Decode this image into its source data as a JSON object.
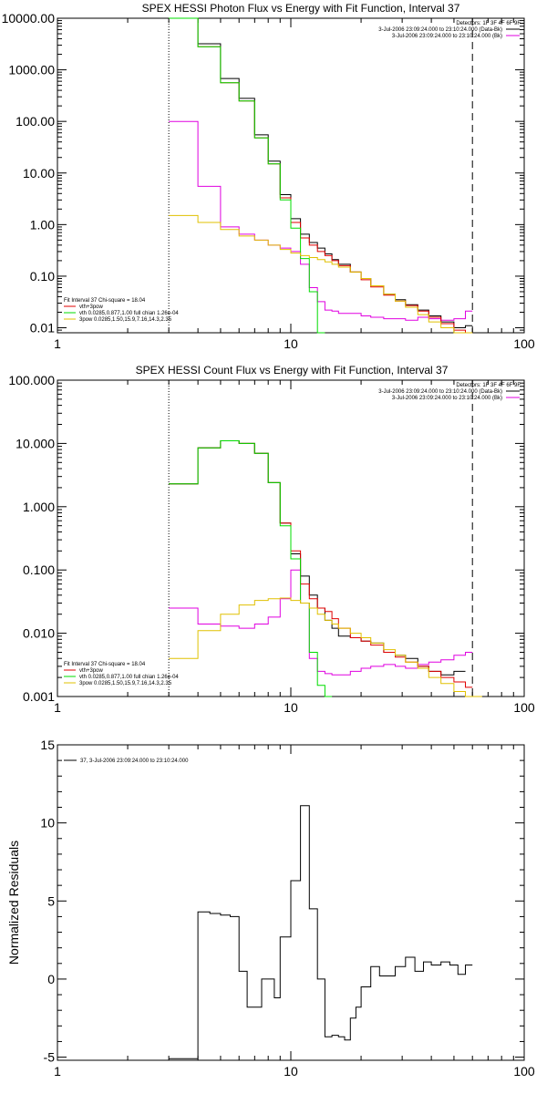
{
  "chart_data": [
    {
      "type": "line",
      "title": "SPEX HESSI Photon Flux vs Energy with Fit Function, Interval 37",
      "xscale": "log",
      "yscale": "log",
      "xlim": [
        1,
        100
      ],
      "ylim": [
        0.008,
        10000
      ],
      "xticks": [
        1,
        10,
        100
      ],
      "xtick_labels": [
        "1",
        "10",
        "100"
      ],
      "yticks": [
        0.01,
        0.1,
        1,
        10,
        100,
        1000,
        10000
      ],
      "ytick_labels": [
        "0.01",
        "0.10",
        "1.00",
        "10.00",
        "100.00",
        "1000.00",
        "10000.00"
      ],
      "vlines": [
        {
          "x": 3,
          "style": "dotted"
        },
        {
          "x": 60,
          "style": "dashed"
        }
      ],
      "legend_top": [
        "Detectors: 1F 3F 4F 6F 9F",
        "3-Jul-2006 23:09:24.000 to 23:10:24.000 (Data-Bk)",
        "3-Jul-2006 23:09:24.000 to 23:10:24.000 (Bk)"
      ],
      "legend_top_colors": [
        "",
        "#000000",
        "#e000e0"
      ],
      "legend_bottom": [
        "Fit Interval 37   Chi-square = 18.04",
        "vth+3pow",
        "vth 0.0285,0.877,1.00  full chian 1.26e-04",
        "3pow 0.0285,1.50,15.9,7.16,14.3,2.35"
      ],
      "legend_bottom_colors": [
        "",
        "#e00000",
        "#00dd00",
        "#e0c000"
      ],
      "edges": [
        3,
        4,
        5,
        6,
        7,
        8,
        9,
        10,
        11,
        12,
        13,
        14,
        15,
        16,
        18,
        20,
        22,
        25,
        28,
        31,
        35,
        39,
        44,
        50,
        56,
        60
      ],
      "series": [
        {
          "name": "Data-Bk",
          "color": "#000000",
          "values": [
            10000,
            3200,
            680,
            280,
            55,
            17,
            3.8,
            1.3,
            0.65,
            0.45,
            0.35,
            0.27,
            0.21,
            0.17,
            0.12,
            0.09,
            0.065,
            0.045,
            0.035,
            0.028,
            0.022,
            0.017,
            0.013,
            0.01,
            0.011
          ]
        },
        {
          "name": "Bk",
          "color": "#e000e0",
          "values": [
            100,
            5.5,
            0.9,
            0.65,
            0.5,
            0.4,
            0.35,
            0.3,
            0.17,
            0.06,
            0.032,
            0.022,
            0.021,
            0.019,
            0.019,
            0.017,
            0.016,
            0.015,
            0.015,
            0.014,
            0.016,
            0.015,
            0.014,
            0.015,
            0.021
          ]
        },
        {
          "name": "vth+3pow",
          "color": "#e00000",
          "values": [
            10000,
            2800,
            560,
            250,
            48,
            15,
            3.3,
            1.1,
            0.55,
            0.4,
            0.3,
            0.25,
            0.2,
            0.16,
            0.12,
            0.085,
            0.062,
            0.043,
            0.033,
            0.027,
            0.021,
            0.016,
            0.012,
            0.009,
            0.008
          ]
        },
        {
          "name": "vth",
          "color": "#00dd00",
          "values": [
            10000,
            2800,
            560,
            250,
            48,
            15,
            3.0,
            0.85,
            0.22,
            0.05,
            0.008
          ]
        },
        {
          "name": "3pow",
          "color": "#e0c000",
          "values": [
            1.5,
            1.1,
            0.8,
            0.6,
            0.5,
            0.4,
            0.33,
            0.28,
            0.25,
            0.23,
            0.21,
            0.19,
            0.17,
            0.15,
            0.12,
            0.09,
            0.065,
            0.045,
            0.033,
            0.025,
            0.018,
            0.013,
            0.01,
            0.008,
            0.007
          ]
        }
      ]
    },
    {
      "type": "line",
      "title": "SPEX HESSI Count Flux vs Energy with Fit Function, Interval 37",
      "xscale": "log",
      "yscale": "log",
      "xlim": [
        1,
        100
      ],
      "ylim": [
        0.001,
        100
      ],
      "xticks": [
        1,
        10,
        100
      ],
      "xtick_labels": [
        "1",
        "10",
        "100"
      ],
      "yticks": [
        0.001,
        0.01,
        0.1,
        1,
        10,
        100
      ],
      "ytick_labels": [
        "0.001",
        "0.010",
        "0.100",
        "1.000",
        "10.000",
        "100.000"
      ],
      "vlines": [
        {
          "x": 3,
          "style": "dotted"
        },
        {
          "x": 60,
          "style": "dashed"
        }
      ],
      "legend_top": [
        "Detectors: 1F 3F 4F 6F 9F",
        "3-Jul-2006 23:09:24.000 to 23:10:24.000 (Data-Bk)",
        "3-Jul-2006 23:09:24.000 to 23:10:24.000 (Bk)"
      ],
      "legend_top_colors": [
        "",
        "#000000",
        "#e000e0"
      ],
      "legend_bottom": [
        "Fit Interval 37   Chi-square = 18.04",
        "vth+3pow",
        "vth 0.0285,0.877,1.00  full chian 1.26e-04",
        "3pow 0.0285,1.50,15.9,7.16,14.3,2.35"
      ],
      "legend_bottom_colors": [
        "",
        "#e00000",
        "#00dd00",
        "#e0c000"
      ],
      "edges": [
        3,
        4,
        5,
        6,
        7,
        8,
        9,
        10,
        11,
        12,
        13,
        14,
        15,
        16,
        18,
        20,
        22,
        25,
        28,
        31,
        35,
        39,
        44,
        50,
        56,
        60,
        66
      ],
      "series": [
        {
          "name": "Data-Bk",
          "color": "#000000",
          "values": [
            2.3,
            8.5,
            11,
            10,
            7,
            2.4,
            0.55,
            0.18,
            0.08,
            0.04,
            0.025,
            0.016,
            0.012,
            0.009,
            0.0085,
            0.0075,
            0.007,
            0.005,
            0.0045,
            0.004,
            0.003,
            0.0025,
            0.0022,
            0.0025
          ]
        },
        {
          "name": "Bk",
          "color": "#e000e0",
          "values": [
            0.025,
            0.014,
            0.013,
            0.012,
            0.014,
            0.018,
            0.035,
            0.1,
            0.03,
            0.004,
            0.0025,
            0.0023,
            0.0022,
            0.0022,
            0.0025,
            0.0028,
            0.003,
            0.0032,
            0.003,
            0.0028,
            0.0032,
            0.0035,
            0.0038,
            0.0045,
            0.005
          ]
        },
        {
          "name": "vth+3pow",
          "color": "#e00000",
          "values": [
            2.3,
            8.5,
            11,
            10,
            7,
            2.4,
            0.55,
            0.2,
            0.06,
            0.035,
            0.025,
            0.022,
            0.017,
            0.012,
            0.0085,
            0.0075,
            0.0065,
            0.005,
            0.0042,
            0.0035,
            0.003,
            0.0025,
            0.002,
            0.0017,
            0.0014
          ]
        },
        {
          "name": "vth",
          "color": "#00dd00",
          "values": [
            2.3,
            8.5,
            11,
            10,
            7,
            2.4,
            0.5,
            0.15,
            0.03,
            0.005,
            0.0015,
            0.001
          ]
        },
        {
          "name": "3pow",
          "color": "#e0c000",
          "values": [
            0.004,
            0.011,
            0.02,
            0.028,
            0.033,
            0.035,
            0.036,
            0.033,
            0.03,
            0.025,
            0.02,
            0.016,
            0.014,
            0.012,
            0.01,
            0.0085,
            0.007,
            0.0055,
            0.0045,
            0.0035,
            0.0028,
            0.002,
            0.0016,
            0.0012,
            0.001,
            0.0009
          ]
        }
      ]
    },
    {
      "type": "line",
      "title": "",
      "ylabel": "Normalized Residuals",
      "xscale": "log",
      "yscale": "linear",
      "xlim": [
        1,
        100
      ],
      "ylim": [
        -5.2,
        15
      ],
      "xticks": [
        1,
        10,
        100
      ],
      "xtick_labels": [
        "1",
        "10",
        "100"
      ],
      "yticks": [
        -5,
        0,
        5,
        10,
        15
      ],
      "ytick_labels": [
        "-5",
        "0",
        "5",
        "10",
        "15"
      ],
      "legend_bottom": [],
      "legend_residual": "37,  3-Jul-2006 23:09:24.000 to 23:10:24.000",
      "edges": [
        3,
        4,
        4.5,
        5,
        5.5,
        6,
        6.5,
        7,
        7.5,
        8,
        8.5,
        9,
        9.5,
        10,
        11,
        12,
        13,
        14,
        15,
        16,
        17,
        18,
        19,
        20,
        22,
        24,
        26,
        28,
        31,
        34,
        37,
        40,
        44,
        48,
        52,
        56,
        60
      ],
      "series": [
        {
          "name": "residual",
          "color": "#000000",
          "values": [
            -5.1,
            4.3,
            4.2,
            4.1,
            4.0,
            0.5,
            -1.8,
            -1.8,
            0.0,
            0.0,
            -1.2,
            2.7,
            2.7,
            6.3,
            11.1,
            4.5,
            0.0,
            -3.7,
            -3.6,
            -3.7,
            -3.9,
            -2.5,
            -1.8,
            -0.5,
            0.8,
            0.2,
            0.2,
            0.8,
            1.4,
            0.5,
            1.1,
            0.9,
            1.1,
            0.9,
            0.3,
            0.9
          ]
        }
      ]
    }
  ]
}
